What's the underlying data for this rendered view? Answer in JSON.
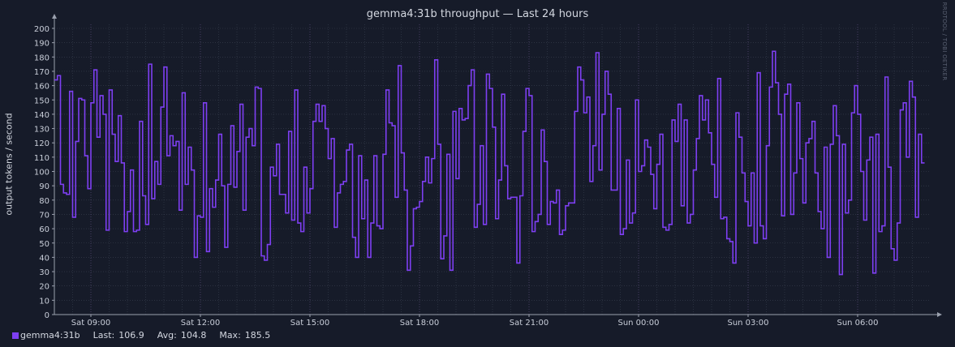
{
  "chart_data": {
    "type": "line",
    "title": "gemma4:31b throughput — Last 24 hours",
    "ylabel": "output tokens / second",
    "xlabel": "",
    "ylim": [
      0,
      200
    ],
    "y_ticks": [
      0,
      10,
      20,
      30,
      40,
      50,
      60,
      70,
      80,
      90,
      100,
      110,
      120,
      130,
      140,
      150,
      160,
      170,
      180,
      190,
      200
    ],
    "x_range": [
      "Sat 08:00",
      "Sun 08:00"
    ],
    "x_ticks": [
      {
        "label": "Sat 09:00",
        "hours": 1
      },
      {
        "label": "Sat 12:00",
        "hours": 4
      },
      {
        "label": "Sat 15:00",
        "hours": 7
      },
      {
        "label": "Sat 18:00",
        "hours": 10
      },
      {
        "label": "Sat 21:00",
        "hours": 13
      },
      {
        "label": "Sun 00:00",
        "hours": 16
      },
      {
        "label": "Sun 03:00",
        "hours": 19
      },
      {
        "label": "Sun 06:00",
        "hours": 22
      }
    ],
    "grid": true,
    "series": [
      {
        "name": "gemma4:31b",
        "color": "#7e3ff2",
        "step": true,
        "x_step_minutes": 5,
        "values": [
          164,
          167,
          91,
          85,
          84,
          156,
          68,
          121,
          151,
          150,
          111,
          88,
          148,
          171,
          124,
          153,
          140,
          59,
          157,
          126,
          107,
          139,
          106,
          58,
          72,
          101,
          58,
          59,
          135,
          83,
          63,
          175,
          81,
          107,
          91,
          145,
          173,
          111,
          125,
          118,
          121,
          73,
          155,
          91,
          117,
          101,
          40,
          69,
          68,
          148,
          44,
          88,
          75,
          94,
          126,
          90,
          47,
          91,
          132,
          89,
          114,
          147,
          73,
          124,
          130,
          118,
          159,
          158,
          41,
          38,
          49,
          103,
          97,
          119,
          84,
          84,
          71,
          128,
          66,
          157,
          64,
          58,
          103,
          71,
          88,
          135,
          147,
          135,
          146,
          130,
          109,
          123,
          61,
          85,
          91,
          93,
          115,
          119,
          54,
          40,
          111,
          67,
          94,
          40,
          64,
          111,
          62,
          60,
          112,
          157,
          134,
          132,
          82,
          174,
          113,
          87,
          31,
          48,
          74,
          75,
          79,
          93,
          110,
          92,
          109,
          178,
          119,
          39,
          55,
          112,
          31,
          142,
          95,
          144,
          136,
          137,
          160,
          171,
          61,
          77,
          118,
          63,
          168,
          158,
          131,
          67,
          94,
          154,
          104,
          81,
          82,
          82,
          36,
          83,
          128,
          158,
          153,
          58,
          65,
          70,
          129,
          107,
          63,
          79,
          78,
          87,
          56,
          59,
          76,
          78,
          78,
          142,
          173,
          164,
          141,
          152,
          93,
          118,
          183,
          101,
          140,
          170,
          154,
          87,
          87,
          144,
          56,
          60,
          108,
          64,
          71,
          150,
          100,
          104,
          122,
          117,
          98,
          74,
          105,
          126,
          61,
          59,
          63,
          136,
          121,
          147,
          76,
          136,
          64,
          70,
          101,
          123,
          153,
          136,
          150,
          127,
          105,
          82,
          165,
          67,
          68,
          53,
          51,
          36,
          141,
          124,
          99,
          79,
          62,
          99,
          50,
          169,
          62,
          53,
          118,
          159,
          184,
          162,
          140,
          69,
          154,
          161,
          70,
          99,
          148,
          109,
          78,
          120,
          123,
          135,
          99,
          72,
          60,
          117,
          40,
          119,
          146,
          125,
          28,
          119,
          71,
          80,
          141,
          160,
          140,
          100,
          66,
          108,
          124,
          29,
          126,
          58,
          62,
          166,
          103,
          46,
          38,
          64,
          143,
          148,
          110,
          163,
          152,
          68,
          126,
          106
        ]
      }
    ],
    "legend": {
      "position": "bottom-left",
      "series_name": "gemma4:31b",
      "last_label": "Last:",
      "last_value": "106.9",
      "avg_label": "Avg:",
      "avg_value": "104.8",
      "max_label": "Max:",
      "max_value": "185.5"
    }
  },
  "watermark": "RRDTOOL / TOBI OETIKER",
  "colors": {
    "background": "#161b29",
    "grid": "#3a4150",
    "axis": "#9aa0ad",
    "text": "#c9ced9",
    "line": "#7e3ff2"
  }
}
